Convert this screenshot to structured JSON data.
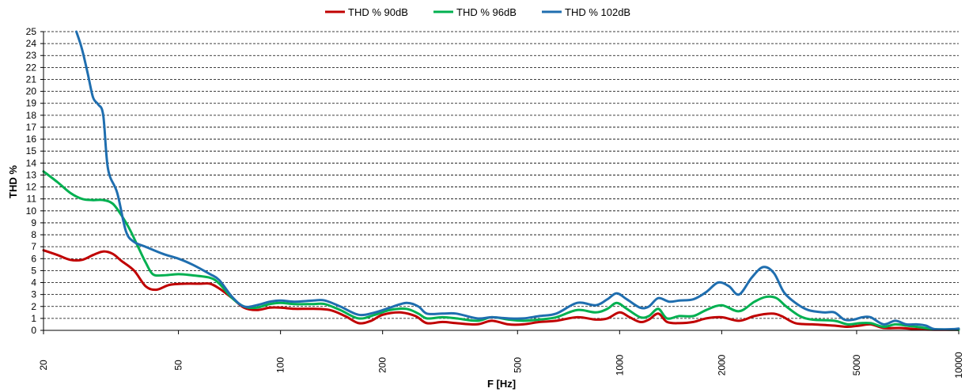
{
  "chart_data": {
    "type": "line",
    "xlabel": "F [Hz]",
    "ylabel": "THD %",
    "x_scale": "log",
    "xlim": [
      20,
      10000
    ],
    "ylim": [
      0,
      25
    ],
    "x_ticks": [
      20,
      50,
      100,
      200,
      500,
      1000,
      2000,
      5000,
      10000
    ],
    "y_ticks": [
      0,
      1,
      2,
      3,
      4,
      5,
      6,
      7,
      8,
      9,
      10,
      11,
      12,
      13,
      14,
      15,
      16,
      17,
      18,
      19,
      20,
      21,
      22,
      23,
      24,
      25
    ],
    "grid": "horizontal-dashed",
    "legend": "top-center",
    "series": [
      {
        "name": "THD % 90dB",
        "color": "#c00000",
        "points": [
          [
            20,
            6.7
          ],
          [
            22,
            6.3
          ],
          [
            24,
            5.9
          ],
          [
            26,
            5.9
          ],
          [
            28,
            6.3
          ],
          [
            30,
            6.6
          ],
          [
            32,
            6.4
          ],
          [
            34,
            5.8
          ],
          [
            37,
            5.0
          ],
          [
            40,
            3.7
          ],
          [
            43,
            3.4
          ],
          [
            47,
            3.8
          ],
          [
            52,
            3.9
          ],
          [
            58,
            3.9
          ],
          [
            62,
            3.9
          ],
          [
            66,
            3.5
          ],
          [
            72,
            2.7
          ],
          [
            78,
            1.9
          ],
          [
            85,
            1.7
          ],
          [
            93,
            1.9
          ],
          [
            100,
            1.9
          ],
          [
            110,
            1.8
          ],
          [
            125,
            1.8
          ],
          [
            140,
            1.7
          ],
          [
            155,
            1.2
          ],
          [
            170,
            0.6
          ],
          [
            185,
            0.8
          ],
          [
            200,
            1.3
          ],
          [
            225,
            1.5
          ],
          [
            250,
            1.2
          ],
          [
            270,
            0.6
          ],
          [
            300,
            0.7
          ],
          [
            330,
            0.6
          ],
          [
            380,
            0.5
          ],
          [
            420,
            0.8
          ],
          [
            470,
            0.5
          ],
          [
            520,
            0.5
          ],
          [
            580,
            0.7
          ],
          [
            650,
            0.8
          ],
          [
            750,
            1.1
          ],
          [
            850,
            0.9
          ],
          [
            920,
            1.0
          ],
          [
            1000,
            1.5
          ],
          [
            1070,
            1.1
          ],
          [
            1150,
            0.7
          ],
          [
            1220,
            0.9
          ],
          [
            1300,
            1.4
          ],
          [
            1380,
            0.7
          ],
          [
            1500,
            0.6
          ],
          [
            1650,
            0.7
          ],
          [
            1800,
            1.0
          ],
          [
            2000,
            1.1
          ],
          [
            2250,
            0.8
          ],
          [
            2500,
            1.2
          ],
          [
            2800,
            1.4
          ],
          [
            3000,
            1.2
          ],
          [
            3300,
            0.6
          ],
          [
            3700,
            0.5
          ],
          [
            4300,
            0.4
          ],
          [
            4700,
            0.3
          ],
          [
            5100,
            0.4
          ],
          [
            5500,
            0.5
          ],
          [
            6000,
            0.2
          ],
          [
            6700,
            0.2
          ],
          [
            7500,
            0.1
          ],
          [
            8500,
            0.05
          ],
          [
            10000,
            0.05
          ]
        ]
      },
      {
        "name": "THD % 96dB",
        "color": "#00b050",
        "points": [
          [
            20,
            13.3
          ],
          [
            22,
            12.4
          ],
          [
            24,
            11.5
          ],
          [
            26,
            11.0
          ],
          [
            28,
            10.9
          ],
          [
            30,
            10.9
          ],
          [
            32,
            10.6
          ],
          [
            34,
            9.6
          ],
          [
            36,
            8.4
          ],
          [
            38,
            7.0
          ],
          [
            40,
            5.7
          ],
          [
            42,
            4.7
          ],
          [
            45,
            4.6
          ],
          [
            50,
            4.7
          ],
          [
            55,
            4.6
          ],
          [
            62,
            4.4
          ],
          [
            66,
            3.9
          ],
          [
            72,
            2.7
          ],
          [
            78,
            2.0
          ],
          [
            85,
            1.9
          ],
          [
            93,
            2.2
          ],
          [
            100,
            2.3
          ],
          [
            110,
            2.2
          ],
          [
            125,
            2.2
          ],
          [
            135,
            2.2
          ],
          [
            150,
            1.7
          ],
          [
            170,
            1.0
          ],
          [
            190,
            1.3
          ],
          [
            210,
            1.7
          ],
          [
            235,
            1.8
          ],
          [
            255,
            1.4
          ],
          [
            270,
            1.0
          ],
          [
            300,
            1.1
          ],
          [
            330,
            1.0
          ],
          [
            380,
            0.8
          ],
          [
            420,
            1.1
          ],
          [
            470,
            0.9
          ],
          [
            520,
            0.8
          ],
          [
            580,
            0.9
          ],
          [
            650,
            1.1
          ],
          [
            750,
            1.7
          ],
          [
            850,
            1.5
          ],
          [
            920,
            1.8
          ],
          [
            980,
            2.3
          ],
          [
            1050,
            1.8
          ],
          [
            1150,
            1.1
          ],
          [
            1220,
            1.2
          ],
          [
            1300,
            1.8
          ],
          [
            1380,
            1.0
          ],
          [
            1500,
            1.2
          ],
          [
            1650,
            1.2
          ],
          [
            1800,
            1.7
          ],
          [
            2000,
            2.1
          ],
          [
            2250,
            1.6
          ],
          [
            2500,
            2.4
          ],
          [
            2700,
            2.8
          ],
          [
            2900,
            2.7
          ],
          [
            3100,
            2.0
          ],
          [
            3400,
            1.2
          ],
          [
            3700,
            0.9
          ],
          [
            4300,
            0.8
          ],
          [
            4700,
            0.5
          ],
          [
            5100,
            0.6
          ],
          [
            5500,
            0.6
          ],
          [
            6000,
            0.3
          ],
          [
            6500,
            0.5
          ],
          [
            7000,
            0.4
          ],
          [
            7500,
            0.3
          ],
          [
            8500,
            0.1
          ],
          [
            10000,
            0.05
          ]
        ]
      },
      {
        "name": "THD % 102dB",
        "color": "#1f6eaf",
        "points": [
          [
            25,
            25.0
          ],
          [
            26,
            23.5
          ],
          [
            27,
            21.5
          ],
          [
            28,
            19.5
          ],
          [
            29,
            18.9
          ],
          [
            30,
            18.0
          ],
          [
            31,
            13.5
          ],
          [
            33,
            11.5
          ],
          [
            35,
            8.3
          ],
          [
            37,
            7.4
          ],
          [
            40,
            7.0
          ],
          [
            45,
            6.4
          ],
          [
            50,
            6.0
          ],
          [
            55,
            5.5
          ],
          [
            62,
            4.7
          ],
          [
            66,
            4.2
          ],
          [
            72,
            2.8
          ],
          [
            78,
            2.0
          ],
          [
            85,
            2.1
          ],
          [
            93,
            2.4
          ],
          [
            100,
            2.5
          ],
          [
            110,
            2.4
          ],
          [
            125,
            2.5
          ],
          [
            135,
            2.5
          ],
          [
            150,
            2.0
          ],
          [
            170,
            1.3
          ],
          [
            190,
            1.5
          ],
          [
            210,
            1.9
          ],
          [
            235,
            2.3
          ],
          [
            255,
            2.0
          ],
          [
            270,
            1.4
          ],
          [
            300,
            1.4
          ],
          [
            330,
            1.4
          ],
          [
            380,
            1.0
          ],
          [
            420,
            1.1
          ],
          [
            470,
            1.0
          ],
          [
            520,
            1.0
          ],
          [
            580,
            1.2
          ],
          [
            650,
            1.4
          ],
          [
            750,
            2.3
          ],
          [
            850,
            2.1
          ],
          [
            920,
            2.6
          ],
          [
            980,
            3.1
          ],
          [
            1050,
            2.6
          ],
          [
            1150,
            1.9
          ],
          [
            1220,
            2.0
          ],
          [
            1300,
            2.7
          ],
          [
            1400,
            2.4
          ],
          [
            1500,
            2.5
          ],
          [
            1650,
            2.6
          ],
          [
            1800,
            3.2
          ],
          [
            1950,
            4.0
          ],
          [
            2100,
            3.7
          ],
          [
            2250,
            3.0
          ],
          [
            2450,
            4.4
          ],
          [
            2650,
            5.3
          ],
          [
            2850,
            4.8
          ],
          [
            3050,
            3.2
          ],
          [
            3300,
            2.3
          ],
          [
            3600,
            1.7
          ],
          [
            4000,
            1.5
          ],
          [
            4300,
            1.5
          ],
          [
            4600,
            0.9
          ],
          [
            4900,
            0.9
          ],
          [
            5200,
            1.1
          ],
          [
            5500,
            1.1
          ],
          [
            6000,
            0.5
          ],
          [
            6500,
            0.8
          ],
          [
            7000,
            0.5
          ],
          [
            7500,
            0.5
          ],
          [
            8000,
            0.4
          ],
          [
            8500,
            0.1
          ],
          [
            9500,
            0.1
          ],
          [
            10000,
            0.15
          ]
        ]
      }
    ]
  }
}
